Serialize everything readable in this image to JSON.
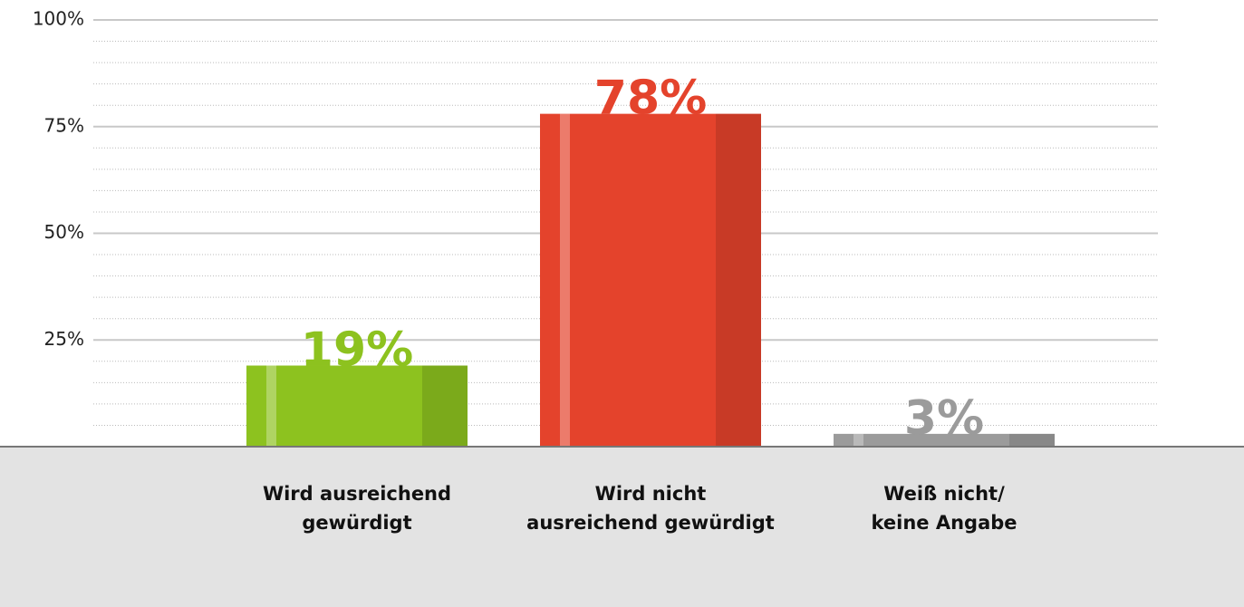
{
  "chart_data": {
    "type": "bar",
    "categories": [
      "Wird ausreichend\ngewürdigt",
      "Wird nicht\nausreichend gewürdigt",
      "Weiß nicht/\nkeine Angabe"
    ],
    "values": [
      19,
      78,
      3
    ],
    "value_labels": [
      "19%",
      "78%",
      "3%"
    ],
    "colors": [
      "#8dc21f",
      "#e4432c",
      "#9b9b9b"
    ],
    "ylim": [
      0,
      100
    ],
    "yticks": [
      {
        "value": 25,
        "label": "25%"
      },
      {
        "value": 50,
        "label": "50%"
      },
      {
        "value": 75,
        "label": "75%"
      },
      {
        "value": 100,
        "label": "100%"
      }
    ],
    "grid": true
  }
}
